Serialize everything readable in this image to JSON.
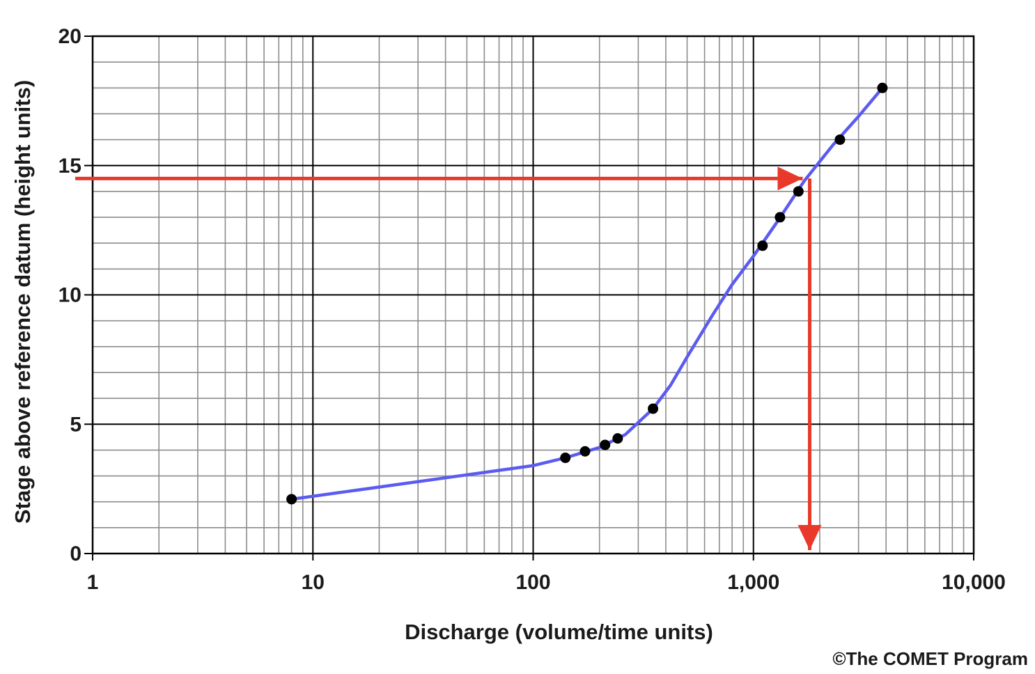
{
  "chart_data": {
    "type": "line",
    "title": "",
    "xlabel": "Discharge (volume/time units)",
    "ylabel": "Stage above reference datum (height units)",
    "x_scale": "log",
    "y_scale": "linear",
    "xlim": [
      1,
      10000
    ],
    "ylim": [
      0,
      20
    ],
    "grid": true,
    "x_ticks": [
      {
        "value": 1,
        "label": "1"
      },
      {
        "value": 10,
        "label": "10"
      },
      {
        "value": 100,
        "label": "100"
      },
      {
        "value": 1000,
        "label": "1,000"
      },
      {
        "value": 10000,
        "label": "10,000"
      }
    ],
    "y_ticks": [
      {
        "value": 0,
        "label": "0"
      },
      {
        "value": 5,
        "label": "5"
      },
      {
        "value": 10,
        "label": "10"
      },
      {
        "value": 15,
        "label": "15"
      },
      {
        "value": 20,
        "label": "20"
      }
    ],
    "series": [
      {
        "kind": "points",
        "color": "#000000",
        "x": [
          8,
          140,
          172,
          212,
          242,
          350,
          1100,
          1320,
          1600,
          2470,
          3850
        ],
        "y": [
          2.1,
          3.7,
          3.95,
          4.2,
          4.45,
          5.6,
          11.9,
          13.0,
          14.0,
          16.0,
          18.0
        ]
      },
      {
        "kind": "line",
        "color": "#5b5bf0",
        "x": [
          8,
          100,
          140,
          200,
          262,
          350,
          420,
          500,
          650,
          800,
          1000,
          1300,
          1700,
          2300,
          3000,
          3850
        ],
        "y": [
          2.1,
          3.4,
          3.7,
          4.1,
          4.6,
          5.6,
          6.5,
          7.6,
          9.2,
          10.4,
          11.5,
          12.9,
          14.4,
          15.8,
          16.9,
          18.0
        ]
      }
    ],
    "annotations": [
      {
        "type": "arrow",
        "color": "#e8392a",
        "from": {
          "x": 1,
          "y": 14.5
        },
        "to": {
          "x": 1800,
          "y": 14.5
        }
      },
      {
        "type": "arrow",
        "color": "#e8392a",
        "from": {
          "x": 1800,
          "y": 14.5
        },
        "to": {
          "x": 1800,
          "y": 0
        }
      }
    ],
    "credit": "©The COMET Program"
  }
}
